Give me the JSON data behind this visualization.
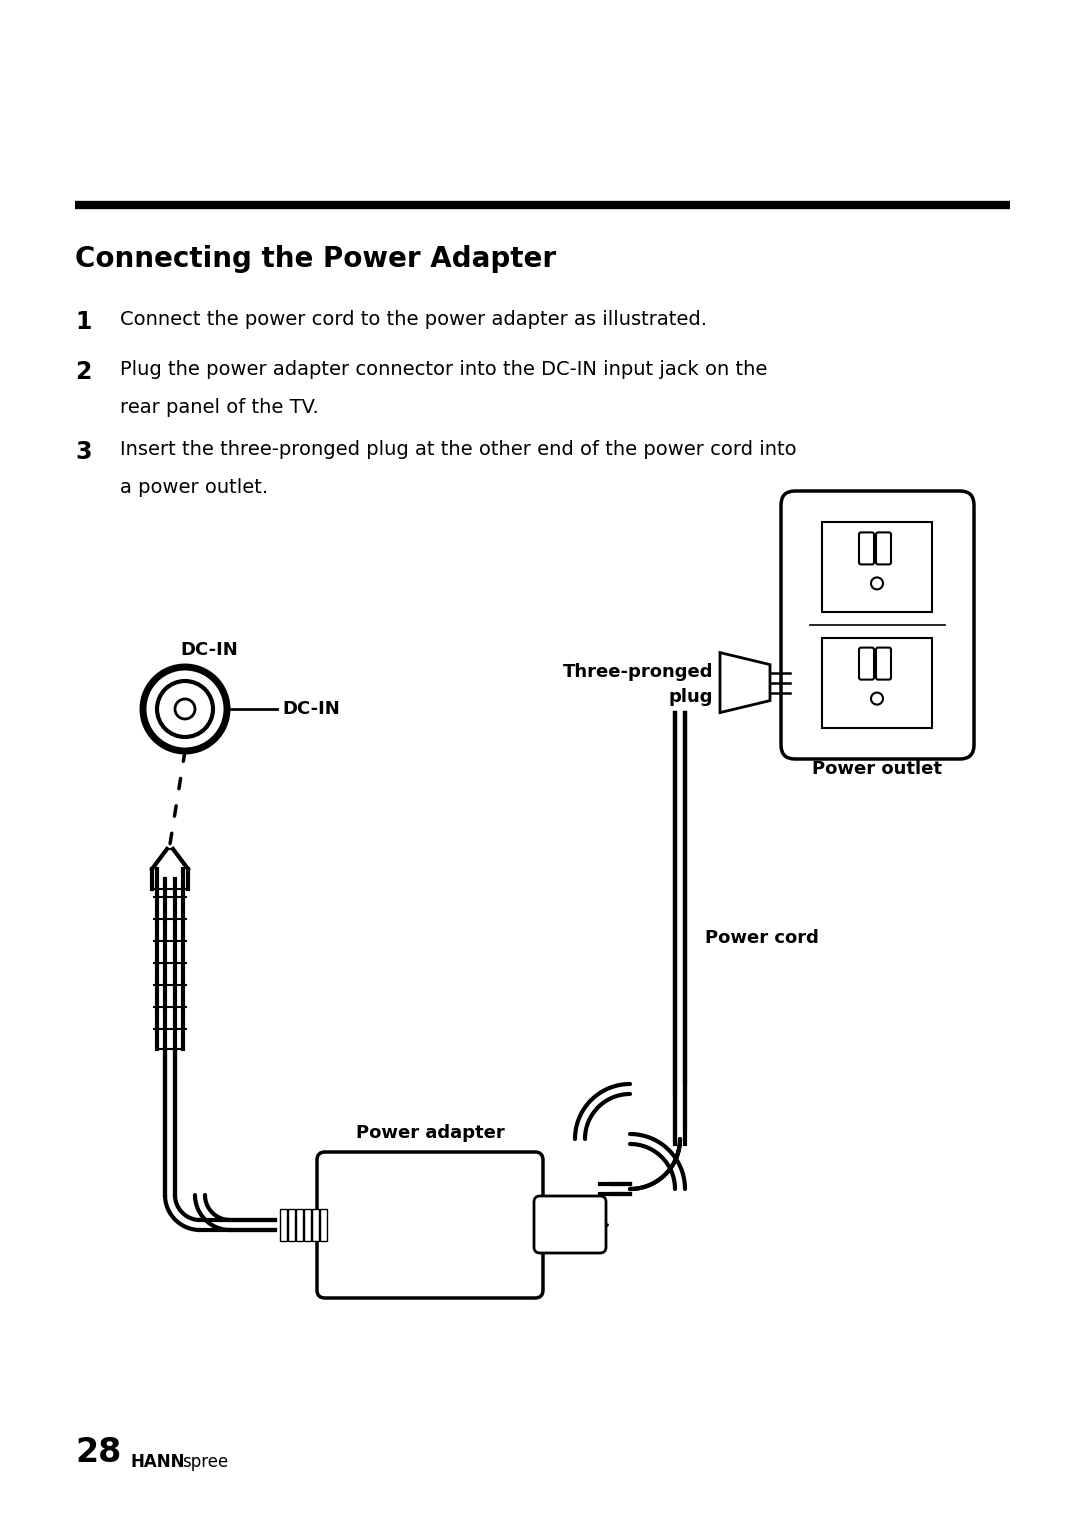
{
  "title": "Connecting the Power Adapter",
  "step1": "Connect the power cord to the power adapter as illustrated.",
  "step2_l1": "Plug the power adapter connector into the DC-IN input jack on the",
  "step2_l2": "rear panel of the TV.",
  "step3_l1": "Insert the three-pronged plug at the other end of the power cord into",
  "step3_l2": "a power outlet.",
  "label_three_pronged": "Three-pronged\nplug",
  "label_power_outlet": "Power outlet",
  "label_dc_in_top": "DC-IN",
  "label_dc_in_right": "DC-IN",
  "label_power_cord": "Power cord",
  "label_power_adapter": "Power adapter",
  "page_number": "28",
  "brand_hann": "HANN",
  "brand_spree": "spree",
  "bg_color": "#ffffff",
  "text_color": "#000000"
}
